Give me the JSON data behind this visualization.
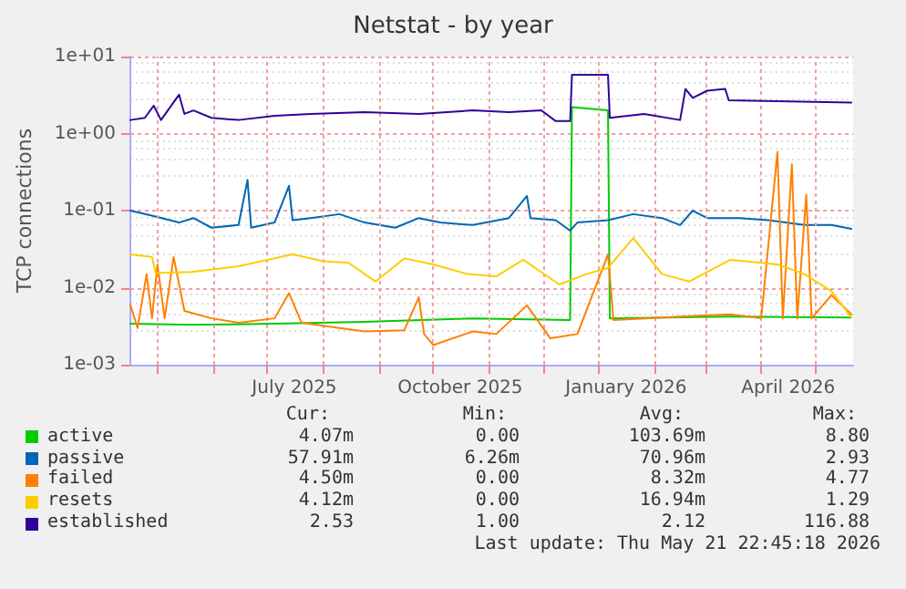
{
  "chart_data": {
    "type": "line",
    "title": "Netstat - by year",
    "ylabel": "TCP connections",
    "log": "y",
    "grid": true,
    "legend": "bottom",
    "marker": "none",
    "line_style": "solid",
    "xlim": [
      "2025-04-16",
      "2026-05-22"
    ],
    "xticks": [
      {
        "value": "2025-05-01",
        "label": null
      },
      {
        "value": "2025-06-01",
        "label": null
      },
      {
        "value": "2025-07-01",
        "label": null
      },
      {
        "value": "2025-07-16",
        "label": "July 2025"
      },
      {
        "value": "2025-08-01",
        "label": null
      },
      {
        "value": "2025-09-01",
        "label": null
      },
      {
        "value": "2025-10-01",
        "label": null
      },
      {
        "value": "2025-10-16",
        "label": "October 2025"
      },
      {
        "value": "2025-11-01",
        "label": null
      },
      {
        "value": "2025-12-01",
        "label": null
      },
      {
        "value": "2026-01-01",
        "label": null
      },
      {
        "value": "2026-01-16",
        "label": "January 2026"
      },
      {
        "value": "2026-02-01",
        "label": null
      },
      {
        "value": "2026-03-01",
        "label": null
      },
      {
        "value": "2026-04-01",
        "label": null
      },
      {
        "value": "2026-04-16",
        "label": "April 2026"
      },
      {
        "value": "2026-05-01",
        "label": null
      }
    ],
    "ylim": [
      0.001,
      10
    ],
    "yticks": [
      {
        "value": 0.001,
        "label": "1e-03"
      },
      {
        "value": 0.01,
        "label": "1e-02"
      },
      {
        "value": 0.1,
        "label": "1e-01"
      },
      {
        "value": 1,
        "label": "1e+00"
      },
      {
        "value": 10,
        "label": "1e+01"
      }
    ],
    "series": [
      {
        "name": "active",
        "color": "#00cc00",
        "x": [
          "2025-04-16",
          "2025-05-20",
          "2025-07-05",
          "2025-08-24",
          "2025-10-23",
          "2025-12-16",
          "2025-12-17",
          "2026-01-06",
          "2026-01-07",
          "2026-03-15",
          "2026-05-21"
        ],
        "values": [
          0.0034,
          0.0033,
          0.0034,
          0.0036,
          0.004,
          0.0038,
          2.2,
          2.0,
          0.004,
          0.0042,
          0.0041
        ]
      },
      {
        "name": "passive",
        "color": "#0066b3",
        "x": [
          "2025-04-16",
          "2025-04-29",
          "2025-05-13",
          "2025-05-21",
          "2025-05-31",
          "2025-06-15",
          "2025-06-20",
          "2025-06-22",
          "2025-07-05",
          "2025-07-13",
          "2025-07-15",
          "2025-07-25",
          "2025-08-10",
          "2025-08-24",
          "2025-09-10",
          "2025-09-23",
          "2025-10-05",
          "2025-10-23",
          "2025-11-12",
          "2025-11-22",
          "2025-11-24",
          "2025-12-08",
          "2025-12-16",
          "2025-12-20",
          "2026-01-06",
          "2026-01-20",
          "2026-02-05",
          "2026-02-15",
          "2026-02-22",
          "2026-03-02",
          "2026-03-20",
          "2026-04-05",
          "2026-04-25",
          "2026-05-10",
          "2026-05-21"
        ],
        "values": [
          0.1,
          0.085,
          0.07,
          0.08,
          0.06,
          0.065,
          0.25,
          0.06,
          0.07,
          0.21,
          0.075,
          0.08,
          0.09,
          0.07,
          0.06,
          0.08,
          0.07,
          0.065,
          0.08,
          0.155,
          0.08,
          0.075,
          0.055,
          0.07,
          0.075,
          0.09,
          0.08,
          0.065,
          0.1,
          0.08,
          0.08,
          0.075,
          0.065,
          0.065,
          0.058
        ]
      },
      {
        "name": "failed",
        "color": "#ff8000",
        "x": [
          "2025-04-16",
          "2025-04-20",
          "2025-04-25",
          "2025-04-28",
          "2025-05-01",
          "2025-05-05",
          "2025-05-10",
          "2025-05-16",
          "2025-05-31",
          "2025-06-15",
          "2025-07-05",
          "2025-07-13",
          "2025-07-20",
          "2025-08-10",
          "2025-08-24",
          "2025-09-15",
          "2025-09-23",
          "2025-09-26",
          "2025-10-01",
          "2025-10-23",
          "2025-11-05",
          "2025-11-22",
          "2025-12-05",
          "2025-12-20",
          "2026-01-06",
          "2026-01-09",
          "2026-02-15",
          "2026-03-15",
          "2026-04-01",
          "2026-04-10",
          "2026-04-13",
          "2026-04-18",
          "2026-04-21",
          "2026-04-26",
          "2026-04-29",
          "2026-05-10",
          "2026-05-21"
        ],
        "values": [
          0.006,
          0.003,
          0.015,
          0.004,
          0.02,
          0.004,
          0.025,
          0.005,
          0.004,
          0.0035,
          0.004,
          0.0085,
          0.0035,
          0.003,
          0.0027,
          0.0028,
          0.0075,
          0.0025,
          0.0018,
          0.0027,
          0.0025,
          0.0059,
          0.0022,
          0.0025,
          0.027,
          0.0038,
          0.0042,
          0.0045,
          0.004,
          0.58,
          0.004,
          0.4,
          0.004,
          0.16,
          0.004,
          0.008,
          0.0045
        ]
      },
      {
        "name": "resets",
        "color": "#ffcc00",
        "x": [
          "2025-04-16",
          "2025-04-28",
          "2025-04-30",
          "2025-05-20",
          "2025-06-15",
          "2025-07-01",
          "2025-07-15",
          "2025-08-01",
          "2025-08-15",
          "2025-08-30",
          "2025-09-15",
          "2025-10-01",
          "2025-10-20",
          "2025-11-05",
          "2025-11-20",
          "2025-12-10",
          "2025-12-25",
          "2026-01-06",
          "2026-01-20",
          "2026-02-05",
          "2026-02-20",
          "2026-03-15",
          "2026-04-10",
          "2026-04-25",
          "2026-05-10",
          "2026-05-21"
        ],
        "values": [
          0.027,
          0.025,
          0.0155,
          0.016,
          0.019,
          0.023,
          0.027,
          0.022,
          0.021,
          0.012,
          0.024,
          0.02,
          0.015,
          0.014,
          0.023,
          0.011,
          0.015,
          0.018,
          0.044,
          0.015,
          0.012,
          0.023,
          0.02,
          0.015,
          0.009,
          0.0041
        ]
      },
      {
        "name": "established",
        "color": "#330099",
        "x": [
          "2025-04-16",
          "2025-04-24",
          "2025-04-29",
          "2025-05-03",
          "2025-05-13",
          "2025-05-16",
          "2025-05-21",
          "2025-05-31",
          "2025-06-15",
          "2025-07-05",
          "2025-07-25",
          "2025-08-24",
          "2025-09-23",
          "2025-10-23",
          "2025-11-12",
          "2025-11-30",
          "2025-12-08",
          "2025-12-16",
          "2025-12-17",
          "2026-01-06",
          "2026-01-07",
          "2026-01-26",
          "2026-02-15",
          "2026-02-18",
          "2026-02-22",
          "2026-03-02",
          "2026-03-12",
          "2026-03-14",
          "2026-05-21"
        ],
        "values": [
          1.5,
          1.6,
          2.3,
          1.5,
          3.2,
          1.8,
          2.0,
          1.6,
          1.5,
          1.7,
          1.8,
          1.9,
          1.8,
          2.0,
          1.9,
          2.0,
          1.45,
          1.45,
          5.8,
          5.8,
          1.6,
          1.8,
          1.5,
          3.8,
          2.9,
          3.6,
          3.8,
          2.7,
          2.53
        ]
      }
    ],
    "annotations": [
      "Cur:",
      "Min:",
      "Avg:",
      "Max:",
      "4.07m",
      "0.00",
      "103.69m",
      "8.80",
      "57.91m",
      "6.26m",
      "70.96m",
      "2.93",
      "4.50m",
      "0.00",
      "8.32m",
      "4.77",
      "4.12m",
      "0.00",
      "16.94m",
      "1.29",
      "2.53",
      "1.00",
      "2.12",
      "116.88",
      "Last update: Thu May 21 22:45:18 2026"
    ]
  }
}
